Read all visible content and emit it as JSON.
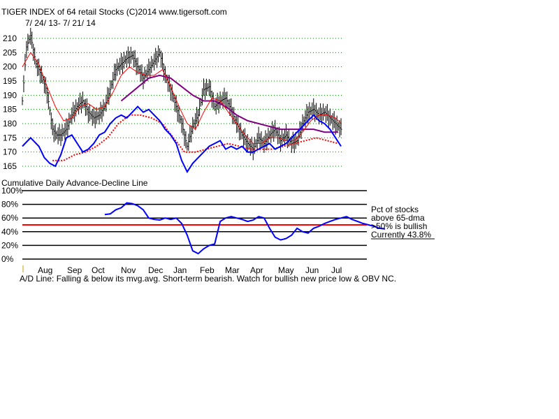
{
  "header": {
    "title": "TIGER INDEX of  64 retail Stocks  (C)2014  www.tigersoft.com",
    "date_range": "7/ 24/ 13- 7/ 21/ 14"
  },
  "colors": {
    "price_bars": "#000000",
    "ma_short": "#ff0000",
    "ma_long": "#800080",
    "ma_dotted": "#ff0000",
    "line_blue": "#0000ff",
    "grid_dots": "#008000",
    "threshold": "#ff0000"
  },
  "chart_data": [
    {
      "type": "line",
      "title": "",
      "y_ticks": [
        "210",
        "205",
        "200",
        "195",
        "190",
        "185",
        "180",
        "175",
        "170",
        "165"
      ],
      "ylim": [
        165,
        212
      ],
      "grid": "dotted horizontal",
      "series_description": [
        "price high-low bars (black)",
        "short moving average (red)",
        "long moving average (purple)",
        "longer moving average (red dotted)",
        "blue indicator line"
      ],
      "price_path": [
        [
          0,
          188
        ],
        [
          3,
          207
        ],
        [
          6,
          211
        ],
        [
          10,
          201
        ],
        [
          14,
          197
        ],
        [
          18,
          191
        ],
        [
          22,
          178
        ],
        [
          25,
          176
        ],
        [
          28,
          176
        ],
        [
          32,
          178
        ],
        [
          36,
          183
        ],
        [
          40,
          186
        ],
        [
          44,
          188
        ],
        [
          48,
          184
        ],
        [
          52,
          182
        ],
        [
          56,
          183
        ],
        [
          60,
          186
        ],
        [
          64,
          192
        ],
        [
          68,
          199
        ],
        [
          72,
          201
        ],
        [
          76,
          203
        ],
        [
          80,
          204
        ],
        [
          84,
          200
        ],
        [
          88,
          196
        ],
        [
          92,
          199
        ],
        [
          96,
          202
        ],
        [
          100,
          205
        ],
        [
          104,
          197
        ],
        [
          108,
          192
        ],
        [
          112,
          186
        ],
        [
          116,
          180
        ],
        [
          120,
          172
        ],
        [
          124,
          179
        ],
        [
          128,
          183
        ],
        [
          132,
          192
        ],
        [
          136,
          193
        ],
        [
          140,
          186
        ],
        [
          144,
          188
        ],
        [
          148,
          189
        ],
        [
          152,
          185
        ],
        [
          156,
          180
        ],
        [
          160,
          176
        ],
        [
          164,
          173
        ],
        [
          168,
          171
        ],
        [
          172,
          175
        ],
        [
          176,
          173
        ],
        [
          180,
          176
        ],
        [
          184,
          178
        ],
        [
          188,
          174
        ],
        [
          192,
          176
        ],
        [
          196,
          173
        ],
        [
          200,
          174
        ],
        [
          204,
          180
        ],
        [
          208,
          184
        ],
        [
          212,
          185
        ],
        [
          216,
          183
        ],
        [
          220,
          184
        ],
        [
          224,
          182
        ],
        [
          228,
          180
        ],
        [
          232,
          178
        ]
      ],
      "red_ma_path": [
        [
          0,
          200
        ],
        [
          6,
          205
        ],
        [
          12,
          201
        ],
        [
          18,
          193
        ],
        [
          24,
          186
        ],
        [
          30,
          181
        ],
        [
          36,
          182
        ],
        [
          42,
          186
        ],
        [
          48,
          187
        ],
        [
          54,
          185
        ],
        [
          60,
          186
        ],
        [
          66,
          191
        ],
        [
          72,
          197
        ],
        [
          78,
          200
        ],
        [
          84,
          198
        ],
        [
          90,
          197
        ],
        [
          96,
          197
        ],
        [
          102,
          199
        ],
        [
          108,
          193
        ],
        [
          114,
          186
        ],
        [
          120,
          180
        ],
        [
          126,
          178
        ],
        [
          132,
          184
        ],
        [
          138,
          189
        ],
        [
          144,
          188
        ],
        [
          150,
          184
        ],
        [
          156,
          180
        ],
        [
          162,
          176
        ],
        [
          168,
          173
        ],
        [
          174,
          173
        ],
        [
          180,
          175
        ],
        [
          186,
          175
        ],
        [
          192,
          174
        ],
        [
          198,
          174
        ],
        [
          204,
          177
        ],
        [
          210,
          181
        ],
        [
          216,
          183
        ],
        [
          222,
          183
        ],
        [
          228,
          182
        ],
        [
          232,
          180
        ]
      ],
      "purple_ma_path": [
        [
          72,
          188
        ],
        [
          82,
          192
        ],
        [
          92,
          196
        ],
        [
          100,
          197
        ],
        [
          108,
          196
        ],
        [
          116,
          193
        ],
        [
          124,
          190
        ],
        [
          132,
          188
        ],
        [
          140,
          188
        ],
        [
          148,
          186
        ],
        [
          156,
          183
        ],
        [
          164,
          181
        ],
        [
          172,
          180
        ],
        [
          180,
          179
        ],
        [
          188,
          178
        ],
        [
          196,
          178
        ],
        [
          204,
          178
        ],
        [
          212,
          178
        ],
        [
          220,
          177
        ],
        [
          226,
          177
        ],
        [
          230,
          177
        ]
      ],
      "dotted_ma_path": [
        [
          22,
          167
        ],
        [
          30,
          167
        ],
        [
          38,
          169
        ],
        [
          46,
          170
        ],
        [
          54,
          172
        ],
        [
          62,
          175
        ],
        [
          70,
          180
        ],
        [
          78,
          183
        ],
        [
          86,
          183
        ],
        [
          94,
          182
        ],
        [
          102,
          180
        ],
        [
          110,
          175
        ],
        [
          118,
          170
        ],
        [
          126,
          170
        ],
        [
          134,
          171
        ],
        [
          142,
          172
        ],
        [
          150,
          173
        ],
        [
          158,
          172
        ],
        [
          166,
          171
        ],
        [
          174,
          171
        ],
        [
          182,
          171
        ],
        [
          190,
          172
        ],
        [
          198,
          173
        ],
        [
          206,
          174
        ],
        [
          214,
          175
        ],
        [
          222,
          174
        ],
        [
          230,
          173
        ]
      ],
      "blue_path": [
        [
          0,
          172
        ],
        [
          6,
          175
        ],
        [
          12,
          172
        ],
        [
          16,
          168
        ],
        [
          20,
          166
        ],
        [
          24,
          165
        ],
        [
          28,
          169
        ],
        [
          32,
          175
        ],
        [
          36,
          176
        ],
        [
          40,
          173
        ],
        [
          44,
          170
        ],
        [
          48,
          171
        ],
        [
          52,
          173
        ],
        [
          56,
          176
        ],
        [
          60,
          177
        ],
        [
          64,
          180
        ],
        [
          68,
          182
        ],
        [
          72,
          183
        ],
        [
          76,
          182
        ],
        [
          80,
          184
        ],
        [
          84,
          186
        ],
        [
          88,
          184
        ],
        [
          92,
          185
        ],
        [
          96,
          183
        ],
        [
          100,
          181
        ],
        [
          104,
          178
        ],
        [
          108,
          176
        ],
        [
          112,
          173
        ],
        [
          116,
          167
        ],
        [
          120,
          163
        ],
        [
          124,
          166
        ],
        [
          128,
          168
        ],
        [
          132,
          170
        ],
        [
          136,
          172
        ],
        [
          140,
          173
        ],
        [
          144,
          174
        ],
        [
          148,
          171
        ],
        [
          152,
          172
        ],
        [
          156,
          171
        ],
        [
          160,
          172
        ],
        [
          164,
          170
        ],
        [
          168,
          170
        ],
        [
          172,
          171
        ],
        [
          176,
          172
        ],
        [
          180,
          173
        ],
        [
          184,
          171
        ],
        [
          188,
          172
        ],
        [
          192,
          173
        ],
        [
          196,
          175
        ],
        [
          200,
          177
        ],
        [
          204,
          179
        ],
        [
          208,
          181
        ],
        [
          212,
          183
        ],
        [
          216,
          181
        ],
        [
          220,
          180
        ],
        [
          224,
          178
        ],
        [
          228,
          175
        ],
        [
          232,
          172
        ]
      ]
    },
    {
      "type": "line",
      "title": "Cumulative Daily Advance-Decline Line",
      "y_ticks": [
        "100%",
        "80%",
        "60%",
        "40%",
        "20%",
        "0%"
      ],
      "ylim": [
        0,
        100
      ],
      "threshold": 50,
      "x_ticks": [
        "Aug",
        "Sep",
        "Oct",
        "Nov",
        "Dec",
        "Jan",
        "Feb",
        "Mar",
        "Apr",
        "May",
        "Jun",
        "Jul"
      ],
      "annotations": [
        "Pct of stocks",
        "above 65-dma",
        ">50% is bullish",
        "Currently  43.8%"
      ],
      "pct_path": [
        [
          60,
          65
        ],
        [
          64,
          66
        ],
        [
          68,
          72
        ],
        [
          72,
          75
        ],
        [
          76,
          82
        ],
        [
          80,
          81
        ],
        [
          84,
          78
        ],
        [
          88,
          72
        ],
        [
          92,
          60
        ],
        [
          96,
          58
        ],
        [
          100,
          57
        ],
        [
          104,
          60
        ],
        [
          108,
          58
        ],
        [
          112,
          60
        ],
        [
          116,
          52
        ],
        [
          120,
          35
        ],
        [
          124,
          12
        ],
        [
          128,
          8
        ],
        [
          132,
          15
        ],
        [
          136,
          20
        ],
        [
          140,
          22
        ],
        [
          144,
          55
        ],
        [
          148,
          60
        ],
        [
          152,
          62
        ],
        [
          156,
          60
        ],
        [
          160,
          58
        ],
        [
          164,
          55
        ],
        [
          168,
          57
        ],
        [
          172,
          62
        ],
        [
          176,
          60
        ],
        [
          180,
          45
        ],
        [
          184,
          32
        ],
        [
          188,
          28
        ],
        [
          192,
          30
        ],
        [
          196,
          35
        ],
        [
          200,
          45
        ],
        [
          204,
          40
        ],
        [
          208,
          38
        ],
        [
          212,
          45
        ],
        [
          216,
          48
        ],
        [
          220,
          52
        ],
        [
          224,
          55
        ],
        [
          228,
          58
        ],
        [
          232,
          60
        ],
        [
          236,
          62
        ],
        [
          240,
          58
        ],
        [
          244,
          55
        ],
        [
          248,
          52
        ],
        [
          252,
          50
        ],
        [
          256,
          48
        ],
        [
          260,
          45
        ],
        [
          264,
          44
        ]
      ]
    }
  ],
  "footer": {
    "summary": "A/D Line: Falling & below its mvg.avg. Short-term bearish. Watch for bullish new price low & OBV NC."
  }
}
